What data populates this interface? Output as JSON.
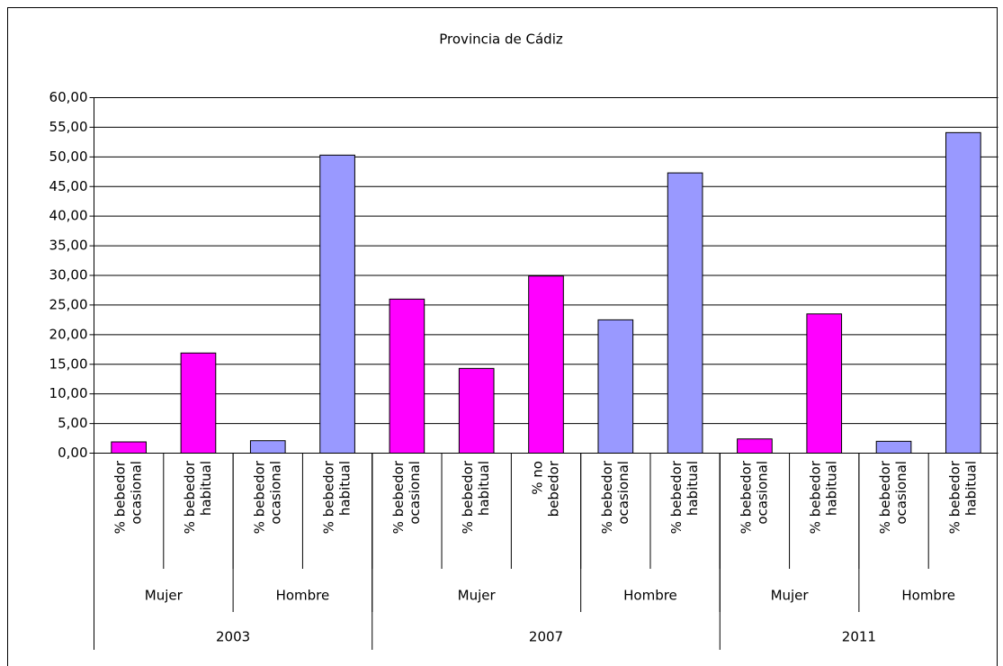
{
  "chart_data": {
    "type": "bar",
    "title": "Provincia de Cádiz",
    "ylim": [
      0,
      60
    ],
    "yticks": [
      {
        "value": 0,
        "label": "0,00"
      },
      {
        "value": 5,
        "label": "5,00"
      },
      {
        "value": 10,
        "label": "10,00"
      },
      {
        "value": 15,
        "label": "15,00"
      },
      {
        "value": 20,
        "label": "20,00"
      },
      {
        "value": 25,
        "label": "25,00"
      },
      {
        "value": 30,
        "label": "30,00"
      },
      {
        "value": 35,
        "label": "35,00"
      },
      {
        "value": 40,
        "label": "40,00"
      },
      {
        "value": 45,
        "label": "45,00"
      },
      {
        "value": 50,
        "label": "50,00"
      },
      {
        "value": 55,
        "label": "55,00"
      },
      {
        "value": 60,
        "label": "60,00"
      }
    ],
    "grid": true,
    "years": [
      {
        "name": "2003",
        "groups": [
          {
            "name": "Mujer",
            "color": "#ff00ff",
            "categories": [
              [
                "% bebedor",
                "ocasional"
              ],
              [
                "% bebedor",
                "habitual"
              ]
            ],
            "values": [
              1.9,
              16.9
            ]
          },
          {
            "name": "Hombre",
            "color": "#9999ff",
            "categories": [
              [
                "% bebedor",
                "ocasional"
              ],
              [
                "% bebedor",
                "habitual"
              ]
            ],
            "values": [
              2.1,
              50.3
            ]
          }
        ]
      },
      {
        "name": "2007",
        "groups": [
          {
            "name": "Mujer",
            "color": "#ff00ff",
            "categories": [
              [
                "% bebedor",
                "ocasional"
              ],
              [
                "% bebedor",
                "habitual"
              ],
              [
                "% no",
                "bebedor"
              ]
            ],
            "values": [
              26.0,
              14.3,
              29.9
            ]
          },
          {
            "name": "Hombre",
            "color": "#9999ff",
            "categories": [
              [
                "% bebedor",
                "ocasional"
              ],
              [
                "% bebedor",
                "habitual"
              ]
            ],
            "values": [
              22.5,
              47.3
            ]
          }
        ]
      },
      {
        "name": "2011",
        "groups": [
          {
            "name": "Mujer",
            "color": "#ff00ff",
            "categories": [
              [
                "% bebedor",
                "ocasional"
              ],
              [
                "% bebedor",
                "habitual"
              ]
            ],
            "values": [
              2.4,
              23.5
            ]
          },
          {
            "name": "Hombre",
            "color": "#9999ff",
            "categories": [
              [
                "% bebedor",
                "ocasional"
              ],
              [
                "% bebedor",
                "habitual"
              ]
            ],
            "values": [
              2.0,
              54.1
            ]
          }
        ]
      }
    ]
  }
}
